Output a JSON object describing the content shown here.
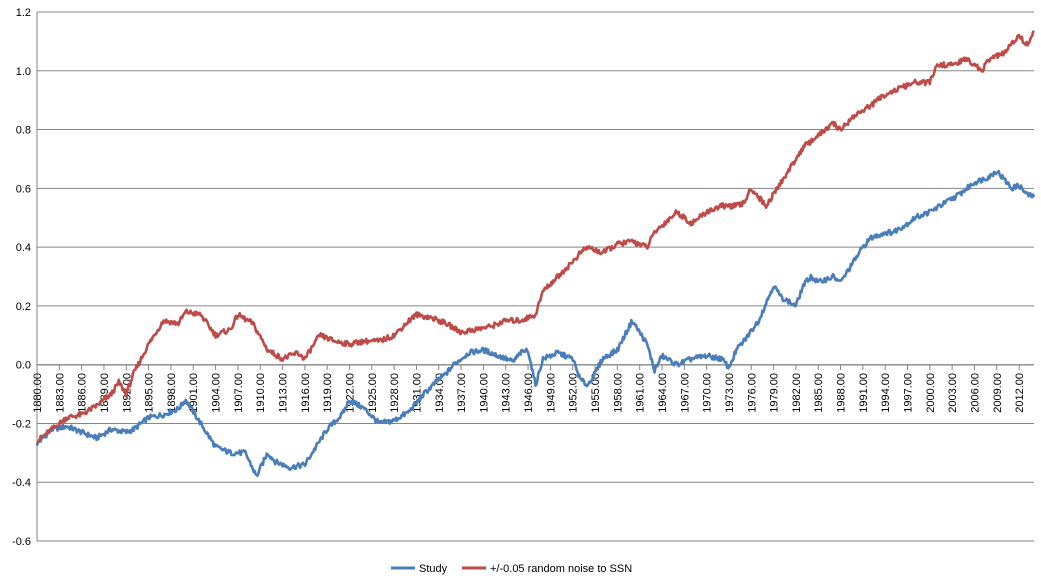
{
  "chart_data": {
    "type": "line",
    "title": "",
    "xlabel": "",
    "ylabel": "",
    "ylim": [
      -0.6,
      1.2
    ],
    "yticks": [
      "-0.6",
      "-0.4",
      "-0.2",
      "0.0",
      "0.2",
      "0.4",
      "0.6",
      "0.8",
      "1.0",
      "1.2"
    ],
    "xlim": [
      1880,
      2014
    ],
    "xticks": [
      "1880.00",
      "1883.00",
      "1886.00",
      "1889.00",
      "1892.00",
      "1895.00",
      "1898.00",
      "1901.00",
      "1904.00",
      "1907.00",
      "1910.00",
      "1913.00",
      "1916.00",
      "1919.00",
      "1922.00",
      "1925.00",
      "1928.00",
      "1931.00",
      "1934.00",
      "1937.00",
      "1940.00",
      "1943.00",
      "1946.00",
      "1949.00",
      "1952.00",
      "1955.00",
      "1958.00",
      "1961.00",
      "1964.00",
      "1967.00",
      "1970.00",
      "1973.00",
      "1976.00",
      "1979.00",
      "1982.00",
      "1985.00",
      "1988.00",
      "1991.00",
      "1994.00",
      "1997.00",
      "2000.00",
      "2003.00",
      "2006.00",
      "2009.00",
      "2012.00"
    ],
    "grid": "horizontal",
    "legend_position": "bottom",
    "series": [
      {
        "name": "Study",
        "color": "#4a7ebb",
        "x": [
          1880,
          1882,
          1884,
          1886,
          1888,
          1890,
          1892,
          1893,
          1895,
          1897,
          1899,
          1900,
          1902,
          1904,
          1906,
          1908,
          1909.5,
          1911,
          1912,
          1914,
          1916,
          1917,
          1919,
          1921,
          1922,
          1924,
          1926,
          1928,
          1930,
          1932,
          1934,
          1935,
          1936,
          1938,
          1940,
          1942,
          1944,
          1945,
          1946,
          1947,
          1948,
          1950,
          1952,
          1953,
          1954,
          1955,
          1956,
          1958,
          1959,
          1960,
          1962,
          1963,
          1964,
          1966,
          1968,
          1970,
          1972,
          1973,
          1974,
          1975,
          1977,
          1979,
          1980,
          1982,
          1983,
          1984,
          1985,
          1987,
          1988,
          1990,
          1991,
          1992,
          1994,
          1995,
          1997,
          1998,
          2000,
          2002,
          2004,
          2006,
          2007,
          2008,
          2009,
          2010,
          2011,
          2012,
          2013,
          2014
        ],
        "values": [
          -0.27,
          -0.22,
          -0.21,
          -0.23,
          -0.25,
          -0.22,
          -0.23,
          -0.22,
          -0.18,
          -0.17,
          -0.15,
          -0.12,
          -0.2,
          -0.28,
          -0.3,
          -0.3,
          -0.38,
          -0.3,
          -0.33,
          -0.35,
          -0.34,
          -0.3,
          -0.22,
          -0.17,
          -0.12,
          -0.15,
          -0.2,
          -0.19,
          -0.16,
          -0.1,
          -0.05,
          -0.03,
          0.0,
          0.04,
          0.05,
          0.03,
          0.01,
          0.04,
          0.05,
          -0.07,
          0.02,
          0.04,
          0.02,
          -0.05,
          -0.07,
          -0.03,
          0.02,
          0.05,
          0.1,
          0.15,
          0.07,
          -0.02,
          0.03,
          0.0,
          0.02,
          0.03,
          0.02,
          -0.01,
          0.05,
          0.08,
          0.15,
          0.27,
          0.23,
          0.2,
          0.27,
          0.3,
          0.28,
          0.3,
          0.28,
          0.36,
          0.4,
          0.43,
          0.45,
          0.45,
          0.48,
          0.5,
          0.52,
          0.55,
          0.58,
          0.62,
          0.63,
          0.64,
          0.66,
          0.63,
          0.6,
          0.61,
          0.58,
          0.57
        ]
      },
      {
        "name": "+/-0.05 random noise to SSN",
        "color": "#be4b48",
        "x": [
          1880,
          1882,
          1884,
          1886,
          1888,
          1890,
          1891,
          1892,
          1893,
          1895,
          1897,
          1899,
          1900,
          1902,
          1904,
          1906,
          1907,
          1909,
          1911,
          1913,
          1915,
          1916,
          1918,
          1920,
          1922,
          1924,
          1926,
          1928,
          1930,
          1931,
          1933,
          1935,
          1937,
          1939,
          1941,
          1943,
          1945,
          1947,
          1948,
          1950,
          1952,
          1953,
          1954,
          1956,
          1958,
          1960,
          1962,
          1963,
          1966,
          1968,
          1970,
          1972,
          1974,
          1975,
          1976,
          1977,
          1978,
          1980,
          1982,
          1983,
          1984,
          1985,
          1987,
          1988,
          1990,
          1992,
          1994,
          1996,
          1998,
          2000,
          2001,
          2003,
          2005,
          2006,
          2007,
          2008,
          2010,
          2012,
          2013,
          2014
        ],
        "values": [
          -0.26,
          -0.22,
          -0.18,
          -0.17,
          -0.14,
          -0.1,
          -0.06,
          -0.1,
          -0.03,
          0.07,
          0.15,
          0.14,
          0.18,
          0.17,
          0.1,
          0.12,
          0.17,
          0.14,
          0.05,
          0.02,
          0.04,
          0.02,
          0.1,
          0.08,
          0.07,
          0.08,
          0.08,
          0.1,
          0.15,
          0.17,
          0.16,
          0.14,
          0.11,
          0.12,
          0.13,
          0.15,
          0.15,
          0.17,
          0.25,
          0.3,
          0.35,
          0.38,
          0.4,
          0.38,
          0.41,
          0.42,
          0.4,
          0.45,
          0.52,
          0.48,
          0.52,
          0.54,
          0.54,
          0.55,
          0.6,
          0.57,
          0.54,
          0.62,
          0.7,
          0.74,
          0.76,
          0.78,
          0.82,
          0.8,
          0.85,
          0.88,
          0.92,
          0.94,
          0.96,
          0.96,
          1.02,
          1.02,
          1.04,
          1.02,
          1.0,
          1.04,
          1.06,
          1.12,
          1.09,
          1.13
        ]
      }
    ]
  }
}
